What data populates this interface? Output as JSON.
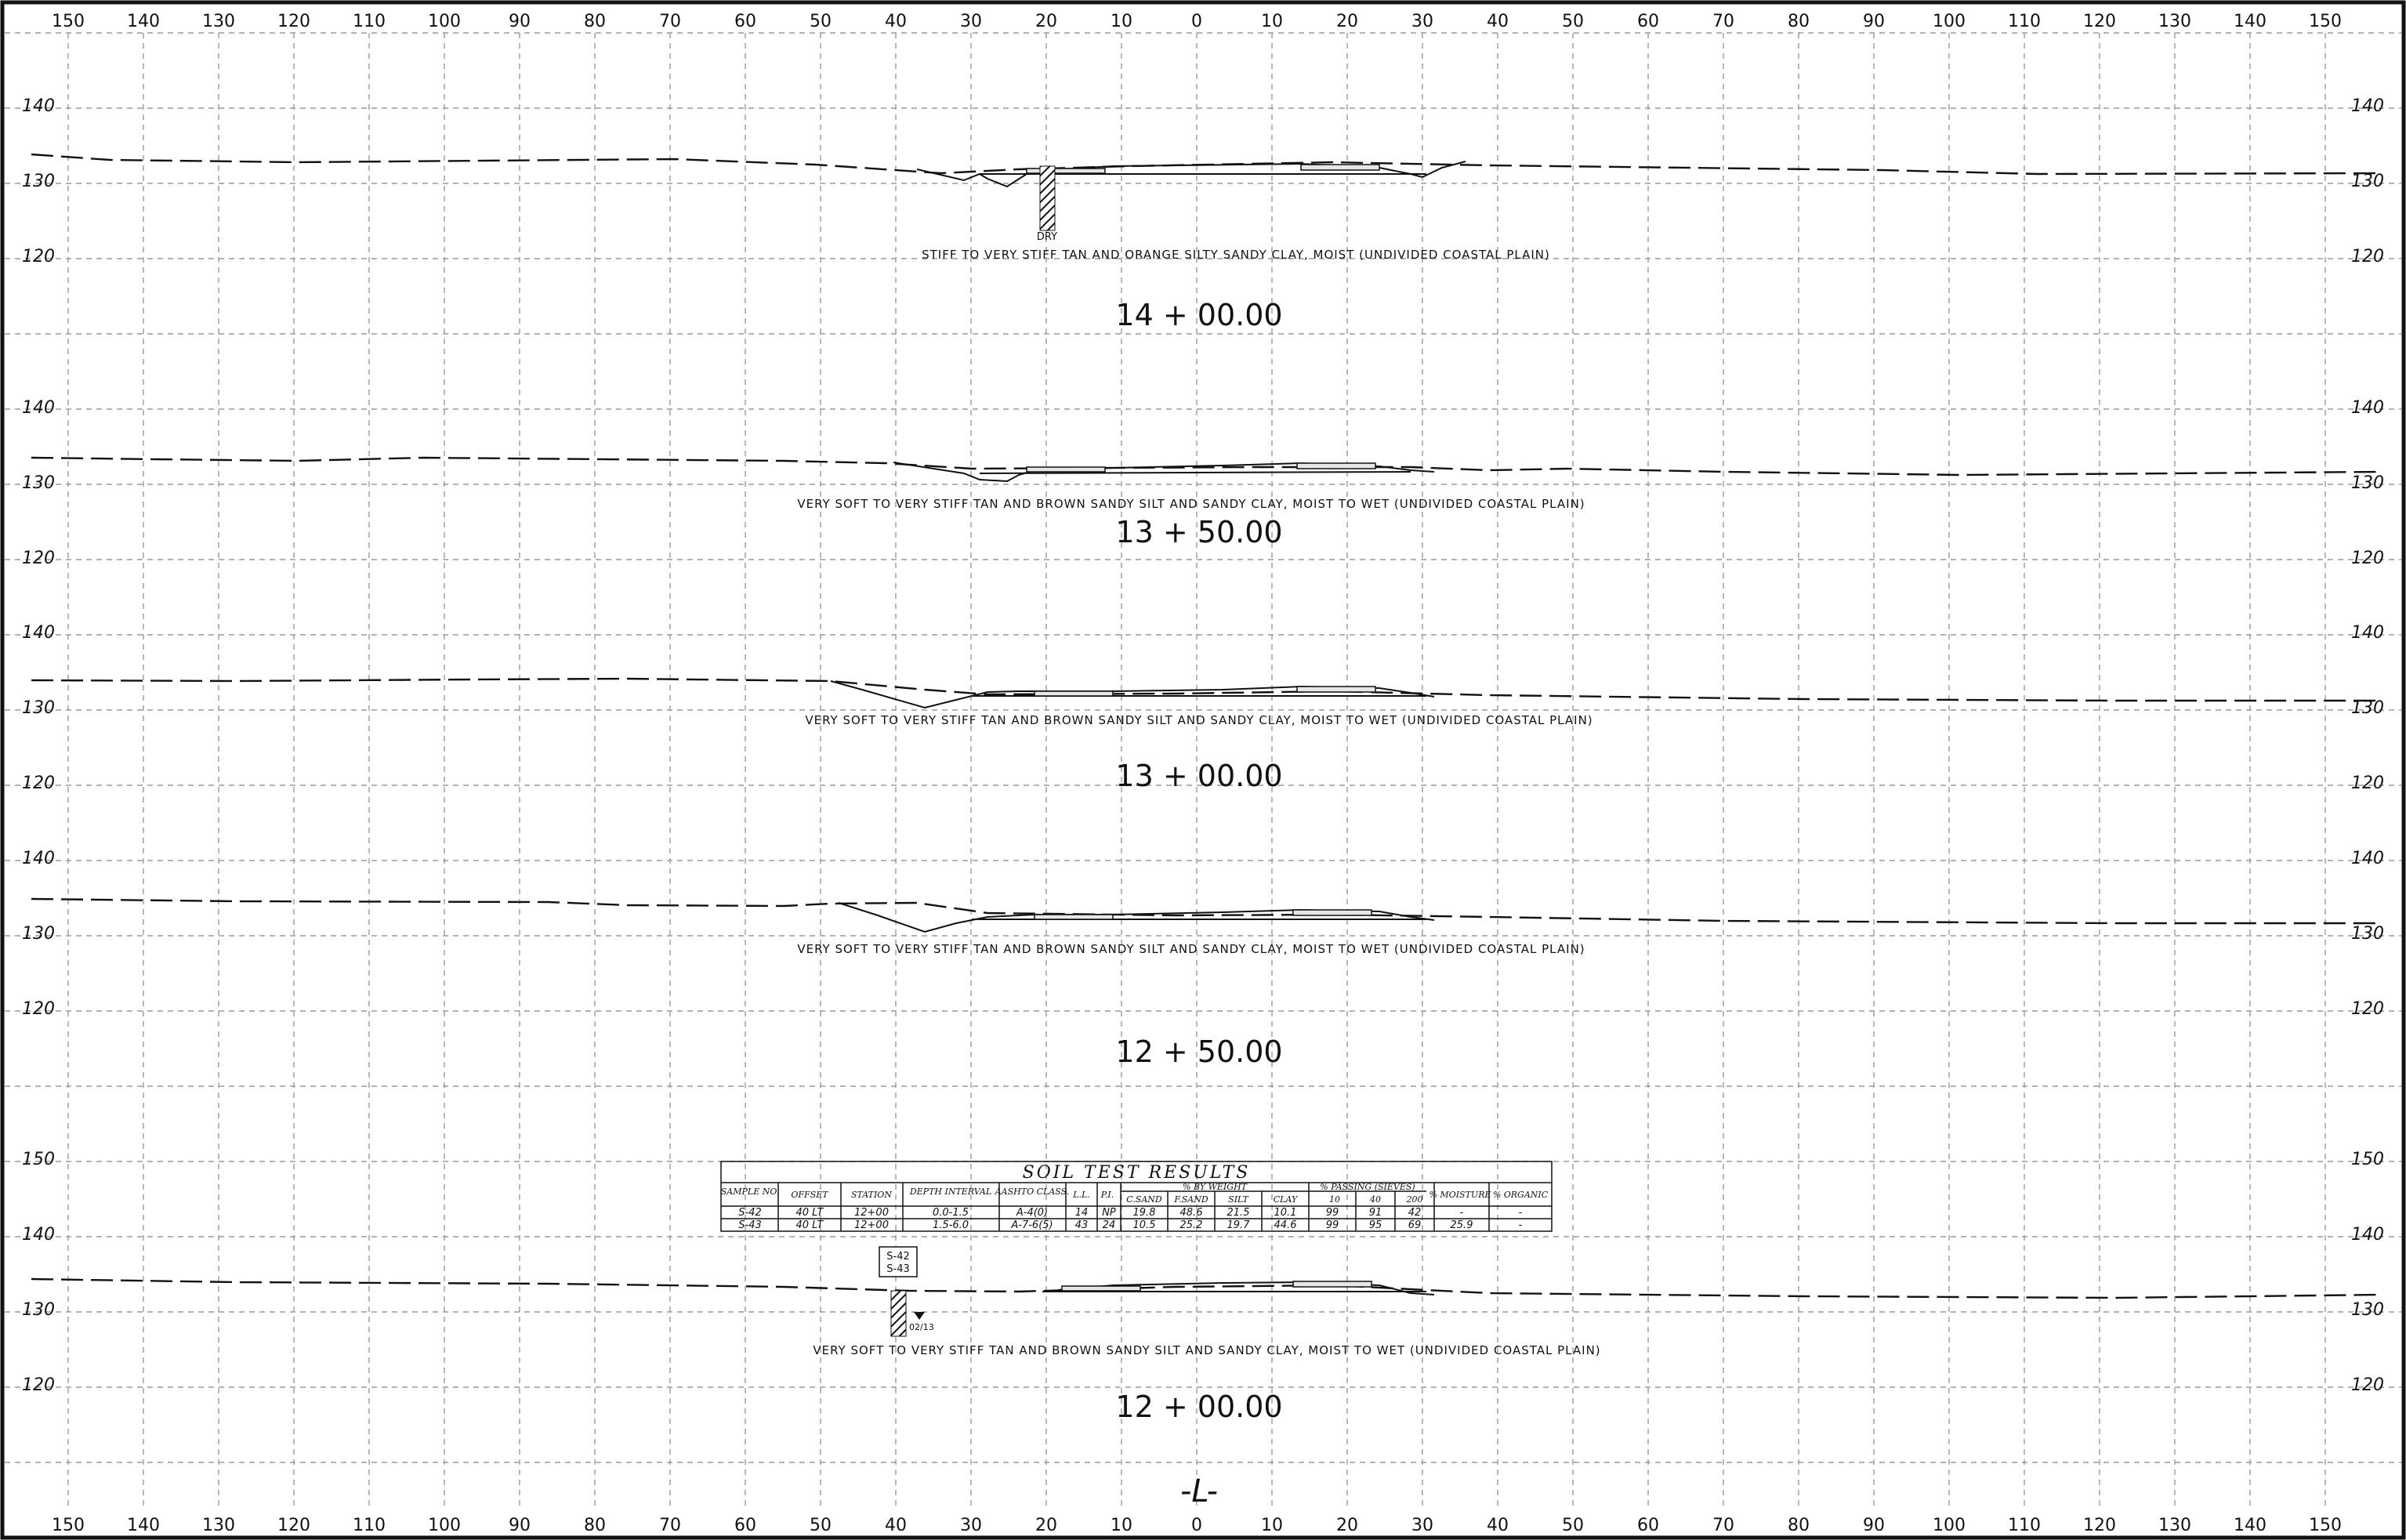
{
  "x_axis_labels": [
    "150",
    "140",
    "130",
    "120",
    "110",
    "100",
    "90",
    "80",
    "70",
    "60",
    "50",
    "40",
    "30",
    "20",
    "10",
    "0",
    "10",
    "20",
    "30",
    "40",
    "50",
    "60",
    "70",
    "80",
    "90",
    "100",
    "110",
    "120",
    "130",
    "140",
    "150"
  ],
  "sections": [
    {
      "station": "14 + 00.00",
      "elevations": [
        "140",
        "130",
        "120"
      ],
      "soil": "STIFF TO VERY STIFF TAN AND ORANGE SILTY SANDY CLAY, MOIST (UNDIVIDED COASTAL PLAIN)",
      "boring_label": "DRY"
    },
    {
      "station": "13 + 50.00",
      "elevations": [
        "140",
        "130",
        "120"
      ],
      "soil": "VERY SOFT TO VERY STIFF TAN AND BROWN SANDY SILT AND SANDY CLAY, MOIST TO WET (UNDIVIDED COASTAL PLAIN)"
    },
    {
      "station": "13 + 00.00",
      "elevations": [
        "140",
        "130",
        "120"
      ],
      "soil": "VERY SOFT TO VERY STIFF TAN AND BROWN SANDY SILT AND SANDY CLAY, MOIST TO WET (UNDIVIDED COASTAL PLAIN)"
    },
    {
      "station": "12 + 50.00",
      "elevations": [
        "140",
        "130",
        "120"
      ],
      "soil": "VERY SOFT TO VERY STIFF TAN AND BROWN SANDY SILT AND SANDY CLAY, MOIST TO WET (UNDIVIDED COASTAL PLAIN)"
    },
    {
      "station": "12 + 00.00",
      "elevations": [
        "150",
        "140",
        "130",
        "120"
      ],
      "soil": "VERY SOFT TO VERY STIFF TAN AND BROWN SANDY SILT AND SANDY CLAY, MOIST TO WET (UNDIVIDED COASTAL PLAIN)",
      "sample_tags": [
        "S-42",
        "S-43"
      ],
      "water_label": "02/13"
    }
  ],
  "centerline_label": "-L-",
  "soil_table": {
    "title": "SOIL TEST RESULTS",
    "headers": {
      "sample": "SAMPLE NO.",
      "offset": "OFFSET",
      "station": "STATION",
      "depth": "DEPTH INTERVAL",
      "aashto": "AASHTO CLASS.",
      "ll": "L.L.",
      "pi": "P.I.",
      "by_weight": "% BY WEIGHT",
      "csand": "C.SAND",
      "fsand": "F.SAND",
      "silt": "SILT",
      "clay": "CLAY",
      "passing": "% PASSING (SIEVES)",
      "s10": "10",
      "s40": "40",
      "s200": "200",
      "moisture": "% MOISTURE",
      "organic": "% ORGANIC"
    },
    "rows": [
      {
        "sample": "S-42",
        "offset": "40 LT",
        "station": "12+00",
        "depth": "0.0-1.5",
        "aashto": "A-4(0)",
        "ll": "14",
        "pi": "NP",
        "csand": "19.8",
        "fsand": "48.6",
        "silt": "21.5",
        "clay": "10.1",
        "s10": "99",
        "s40": "91",
        "s200": "42",
        "moisture": "-",
        "organic": "-"
      },
      {
        "sample": "S-43",
        "offset": "40 LT",
        "station": "12+00",
        "depth": "1.5-6.0",
        "aashto": "A-7-6(5)",
        "ll": "43",
        "pi": "24",
        "csand": "10.5",
        "fsand": "25.2",
        "silt": "19.7",
        "clay": "44.6",
        "s10": "99",
        "s40": "95",
        "s200": "69",
        "moisture": "25.9",
        "organic": "-"
      }
    ]
  }
}
